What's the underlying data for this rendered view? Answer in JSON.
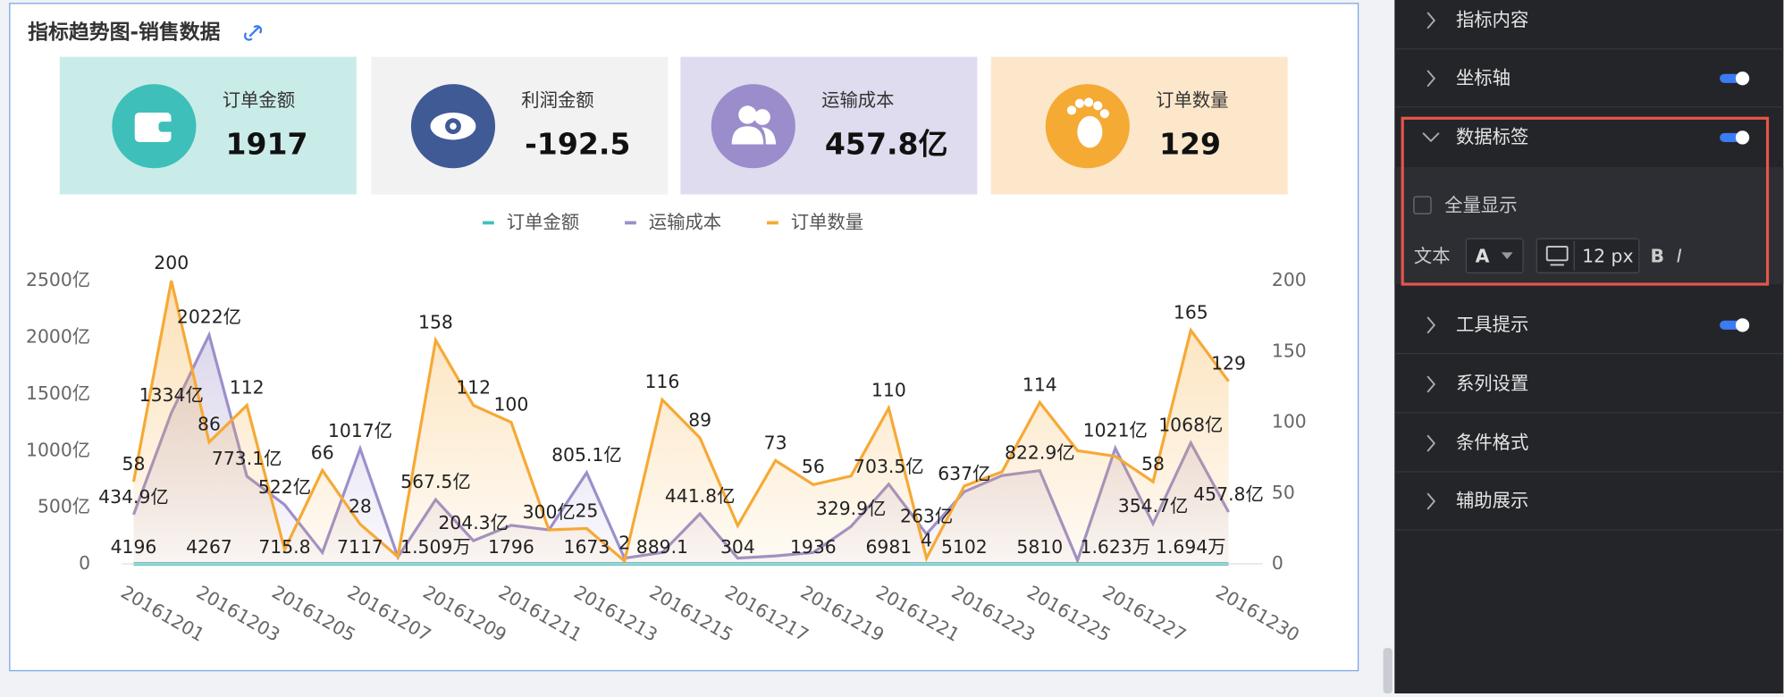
{
  "header": {
    "title": "指标趋势图-销售数据"
  },
  "kpis": [
    {
      "label": "订单金额",
      "value": "1917"
    },
    {
      "label": "利润金额",
      "value": "-192.5"
    },
    {
      "label": "运输成本",
      "value": "457.8亿"
    },
    {
      "label": "订单数量",
      "value": "129"
    }
  ],
  "chart_data": {
    "type": "line",
    "categories": [
      "20161201",
      null,
      "20161203",
      null,
      "20161205",
      null,
      "20161207",
      null,
      "20161209",
      null,
      "20161211",
      null,
      "20161213",
      null,
      "20161215",
      null,
      "20161217",
      null,
      "20161219",
      null,
      "20161221",
      null,
      "20161223",
      null,
      "20161225",
      null,
      "20161227",
      null,
      null,
      "20161230"
    ],
    "series": [
      {
        "name": "订单金额",
        "color": "#44c1bd",
        "values": [
          4.196e-05,
          3e-05,
          4.267e-05,
          3e-05,
          7.158e-06,
          3e-05,
          7.117e-05,
          3e-05,
          0.0001509,
          3e-05,
          1.796e-05,
          3e-05,
          1.673e-05,
          3e-05,
          8.891e-06,
          3e-05,
          3.04e-06,
          3e-05,
          1.936e-05,
          3e-05,
          6.981e-05,
          3e-05,
          5.102e-05,
          3e-05,
          5.81e-05,
          3e-05,
          0.0001623,
          3e-05,
          0.0001694,
          3e-05
        ],
        "value_labels": [
          "4196",
          null,
          "4267",
          null,
          "715.8",
          null,
          "7117",
          null,
          "1.509万",
          null,
          "1796",
          null,
          "1673",
          null,
          "889.1",
          null,
          "304",
          null,
          "1936",
          null,
          "6981",
          null,
          "5102",
          null,
          "5810",
          null,
          "1.623万",
          null,
          "1.694万",
          null
        ]
      },
      {
        "name": "运输成本",
        "color": "#9d8fca",
        "values": [
          434.9,
          1334,
          2022,
          773.1,
          522,
          100,
          1017,
          60,
          567.5,
          204.3,
          340,
          300,
          805.1,
          50,
          100,
          441.8,
          50,
          70,
          100,
          329.9,
          703.5,
          263,
          637,
          780,
          822.9,
          30,
          1021,
          354.7,
          1068,
          457.8
        ],
        "value_labels": [
          "434.9亿",
          "1334亿",
          "2022亿",
          "773.1亿",
          "522亿",
          null,
          "1017亿",
          null,
          "567.5亿",
          "204.3亿",
          null,
          "300亿",
          "805.1亿",
          null,
          null,
          "441.8亿",
          null,
          null,
          null,
          "329.9亿",
          "703.5亿",
          "263亿",
          "637亿",
          null,
          "822.9亿",
          null,
          "1021亿",
          "354.7亿",
          "1068亿",
          "457.8亿"
        ]
      },
      {
        "name": "订单数量",
        "color": "#f6a935",
        "axis": "y2",
        "values": [
          58,
          200,
          86,
          112,
          10,
          66,
          28,
          5,
          158,
          112,
          100,
          24,
          25,
          2,
          116,
          89,
          27,
          73,
          56,
          62,
          110,
          4,
          55,
          65,
          114,
          80,
          76,
          58,
          165,
          129
        ],
        "value_labels": [
          "58",
          "200",
          "86",
          "112",
          null,
          "66",
          "28",
          null,
          "158",
          "112",
          "100",
          null,
          "25",
          "2",
          "116",
          "89",
          null,
          "73",
          "56",
          null,
          "110",
          "4",
          null,
          null,
          "114",
          null,
          null,
          "58",
          "165",
          "129"
        ]
      }
    ],
    "ylim": [
      0,
      2500
    ],
    "yticks": [
      0,
      {
        "value": 500,
        "label": "500亿"
      },
      {
        "value": 1000,
        "label": "1000亿"
      },
      {
        "value": 1500,
        "label": "1500亿"
      },
      {
        "value": 2000,
        "label": "2000亿"
      },
      {
        "value": 2500,
        "label": "2500亿"
      }
    ],
    "y2lim": [
      0,
      200
    ],
    "y2ticks": [
      0,
      50,
      100,
      150,
      200
    ],
    "grid": false
  },
  "panel": {
    "sections": [
      {
        "label": "指标内容",
        "toggle": false
      },
      {
        "label": "坐标轴",
        "toggle": true
      },
      {
        "label": "数据标签",
        "toggle": true,
        "expanded": true
      },
      {
        "label": "工具提示",
        "toggle": true
      },
      {
        "label": "系列设置",
        "toggle": false
      },
      {
        "label": "条件格式",
        "toggle": false
      },
      {
        "label": "辅助展示",
        "toggle": false
      }
    ],
    "data_label_options": {
      "show_all": "全量显示",
      "text_label": "文本",
      "font_button": "A",
      "font_size": "12 px",
      "bold": "B",
      "italic": "I"
    }
  }
}
